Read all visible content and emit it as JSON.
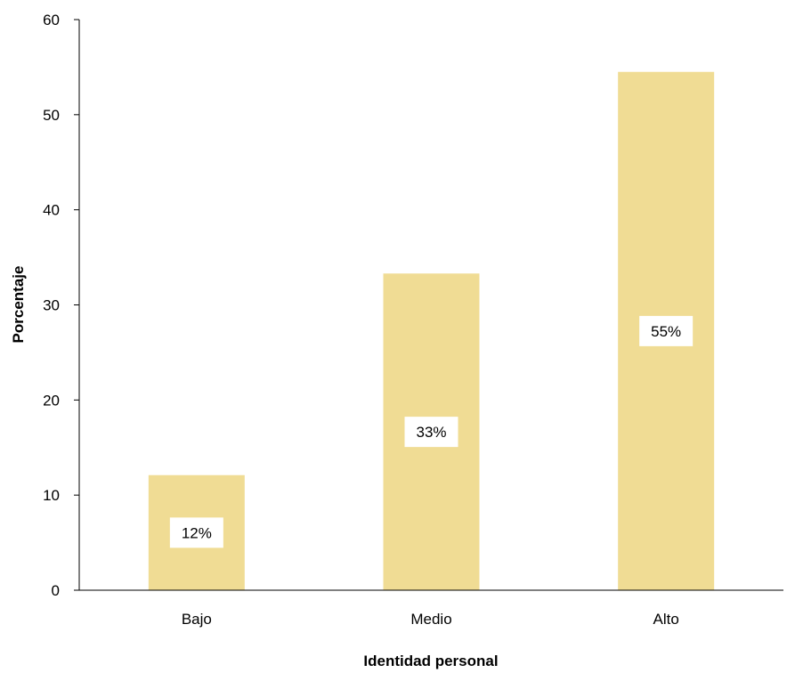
{
  "chart_data": {
    "type": "bar",
    "title": "",
    "xlabel": "Identidad personal",
    "ylabel": "Porcentaje",
    "categories": [
      "Bajo",
      "Medio",
      "Alto"
    ],
    "values": [
      12.1,
      33.3,
      54.5
    ],
    "data_labels": [
      "12%",
      "33%",
      "55%"
    ],
    "ylim": [
      0,
      60
    ],
    "yticks": [
      "0",
      "10",
      "20",
      "30",
      "40",
      "50",
      "60"
    ],
    "grid": false,
    "legend": "none",
    "colors": {
      "bar": "#f0dc94",
      "axis": "#000000",
      "label_box": "#ffffff"
    }
  }
}
